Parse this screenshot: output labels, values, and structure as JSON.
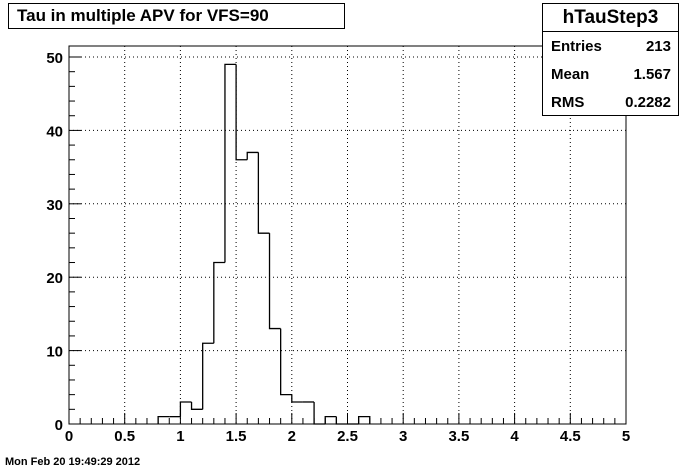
{
  "title": "Tau in multiple APV for VFS=90",
  "stats": {
    "name": "hTauStep3",
    "rows": [
      {
        "label": "Entries",
        "value": "213"
      },
      {
        "label": "Mean",
        "value": "1.567"
      },
      {
        "label": "RMS",
        "value": "0.2282"
      }
    ]
  },
  "footer": "Mon Feb 20 19:49:29 2012",
  "chart_data": {
    "type": "bar",
    "title": "Tau in multiple APV for VFS=90",
    "xlabel": "",
    "ylabel": "",
    "xlim": [
      0,
      5
    ],
    "ylim": [
      0,
      51.5
    ],
    "grid": true,
    "bin_width": 0.1,
    "bin_edges": [
      0.8,
      0.9,
      1.0,
      1.1,
      1.2,
      1.3,
      1.4,
      1.5,
      1.6,
      1.7,
      1.8,
      1.9,
      2.0,
      2.1,
      2.2,
      2.3,
      2.4,
      2.5,
      2.6,
      2.7
    ],
    "values": [
      1,
      1,
      3,
      2,
      11,
      22,
      49,
      36,
      37,
      26,
      13,
      4,
      3,
      3,
      0,
      1,
      0,
      0,
      1
    ],
    "x_ticks": [
      "0",
      "0.5",
      "1",
      "1.5",
      "2",
      "2.5",
      "3",
      "3.5",
      "4",
      "4.5",
      "5"
    ],
    "y_ticks": [
      "0",
      "10",
      "20",
      "30",
      "40",
      "50"
    ]
  }
}
